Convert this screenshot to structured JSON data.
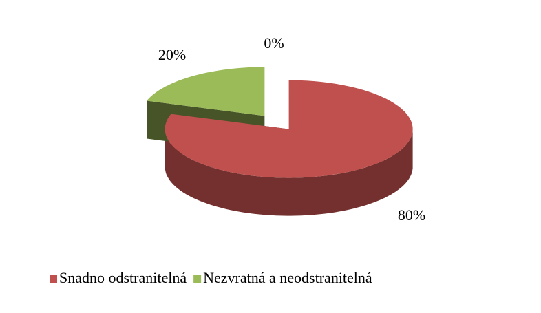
{
  "chart_data": {
    "type": "pie",
    "categories": [
      "Snadno odstranitelná",
      "Nezvratná a neodstranitelná",
      null
    ],
    "values": [
      80,
      20,
      0
    ],
    "value_labels": [
      "80%",
      "20%",
      "0%"
    ],
    "colors": [
      "#c0504d",
      "#9bbb59",
      null
    ],
    "legend": "bottom"
  }
}
